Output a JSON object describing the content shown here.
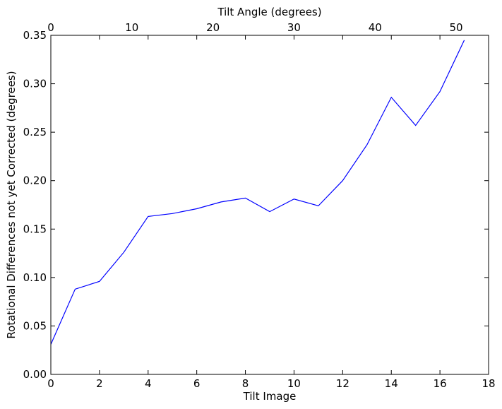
{
  "chart_data": {
    "type": "line",
    "xlabel": "Tilt Image",
    "ylabel": "Rotational Differences not yet Corrected (degrees)",
    "x2label": "Tilt Angle (degrees)",
    "xlim": [
      0,
      18
    ],
    "ylim": [
      0,
      0.35
    ],
    "x2lim": [
      0,
      54
    ],
    "x_ticks": [
      "0",
      "2",
      "4",
      "6",
      "8",
      "10",
      "12",
      "14",
      "16",
      "18"
    ],
    "y_ticks": [
      "0.00",
      "0.05",
      "0.10",
      "0.15",
      "0.20",
      "0.25",
      "0.30",
      "0.35"
    ],
    "x2_ticks": [
      "0",
      "10",
      "20",
      "30",
      "40",
      "50"
    ],
    "line_color": "#0000ff",
    "grid": false,
    "x": [
      0,
      1,
      2,
      3,
      4,
      5,
      6,
      7,
      8,
      9,
      10,
      11,
      12,
      13,
      14,
      15,
      16,
      17
    ],
    "values": [
      0.031,
      0.088,
      0.096,
      0.126,
      0.163,
      0.166,
      0.171,
      0.178,
      0.182,
      0.168,
      0.181,
      0.174,
      0.2,
      0.237,
      0.286,
      0.257,
      0.292,
      0.345
    ]
  }
}
